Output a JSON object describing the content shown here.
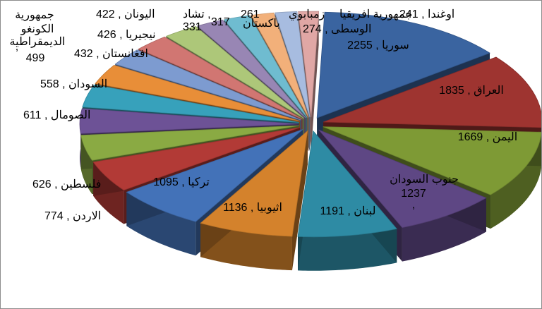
{
  "chart_data": {
    "type": "pie",
    "style": "3d-exploded",
    "title": "",
    "legend": "none",
    "slices": [
      {
        "label": "سوريا",
        "value": 2255,
        "color": "#3A64A0"
      },
      {
        "label": "العراق",
        "value": 1835,
        "color": "#9E3430"
      },
      {
        "label": "اليمن",
        "value": 1669,
        "color": "#7E9A35"
      },
      {
        "label": "جنوب السودان",
        "value": 1237,
        "color": "#5E4784"
      },
      {
        "label": "لبنان",
        "value": 1191,
        "color": "#2E8BA4"
      },
      {
        "label": "اثيوبيا",
        "value": 1136,
        "color": "#D4822C"
      },
      {
        "label": "تركيا",
        "value": 1095,
        "color": "#4372B8"
      },
      {
        "label": "الاردن",
        "value": 774,
        "color": "#B23A36"
      },
      {
        "label": "فلسطين",
        "value": 626,
        "color": "#8AAA43"
      },
      {
        "label": "الصومال",
        "value": 611,
        "color": "#6D5296"
      },
      {
        "label": "السودان",
        "value": 558,
        "color": "#37A1BB"
      },
      {
        "label": "جمهورية الكونغو الديمقراطية",
        "value": 499,
        "color": "#E88E38"
      },
      {
        "label": "افغانستان",
        "value": 432,
        "color": "#7D9BD0"
      },
      {
        "label": "نيجيريا",
        "value": 426,
        "color": "#D17672"
      },
      {
        "label": "اليونان",
        "value": 422,
        "color": "#ADC779"
      },
      {
        "label": "تشاد",
        "value": 331,
        "color": "#9886B4"
      },
      {
        "label": "باكستان",
        "value": 317,
        "color": "#6FBCD0"
      },
      {
        "label": "جمهورية افريقيا الوسطى",
        "value": 274,
        "color": "#F2B07A"
      },
      {
        "label": "زمبابوي",
        "value": 261,
        "color": "#A7BCE0"
      },
      {
        "label": "اوغندا",
        "value": 241,
        "color": "#E0A7A5"
      }
    ],
    "data_labels": {
      "s0": "سوريا , 2255",
      "s1": "العراق , 1835",
      "s2": "اليمن , 1669",
      "s3a": "جنوب السودان",
      "s3b": "1237",
      "s3c": ",",
      "s4": "لبنان , 1191",
      "s5": "اثيوبيا , 1136",
      "s6": "تركيا , 1095",
      "s7": "الاردن , 774",
      "s8": "فلسطين , 626",
      "s9": "الصومال , 611",
      "s10": "السودان , 558",
      "s11a": "جمهورية",
      "s11b": "الكونغو",
      "s11c": "الديمقراطية",
      "s11d": ",",
      "s11e": "499",
      "s12": "افغانستان , 432",
      "s13": "نيجيريا , 426",
      "s14": "اليونان , 422",
      "s15": "تشاد ,",
      "s15v": "331",
      "s16": "317",
      "s16n": "باكستان",
      "s17a": "جمهورية افريقيا",
      "s17b": "الوسطى , 274",
      "s18a": "261",
      "s18b": "زمبابوي",
      "s19": "اوغندا , 241"
    }
  }
}
